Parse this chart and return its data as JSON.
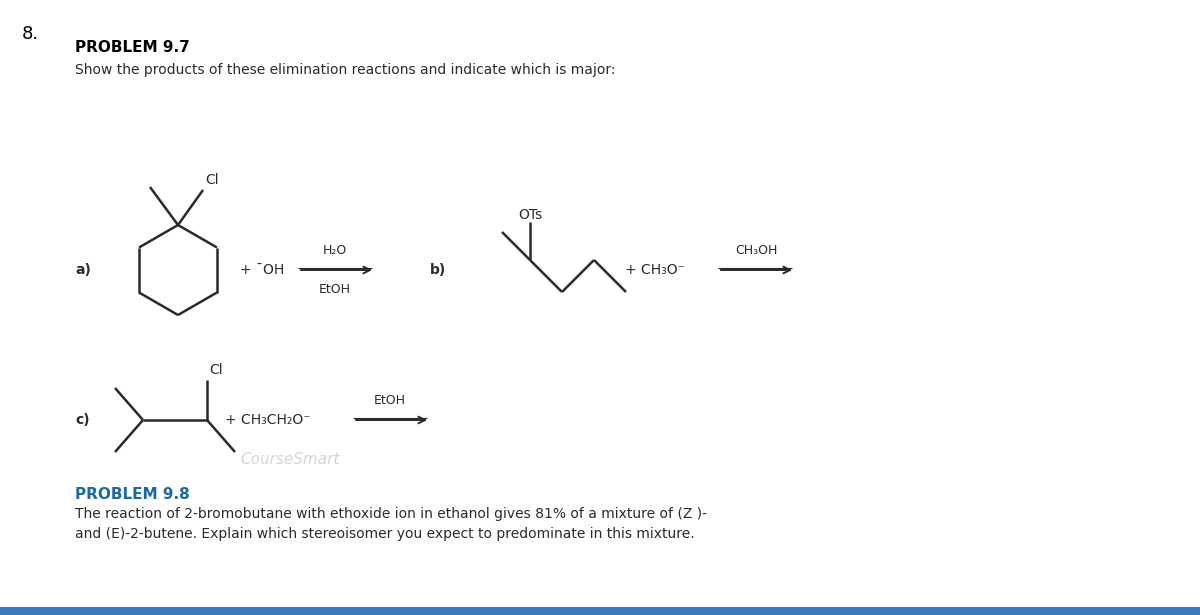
{
  "title_number": "8.",
  "problem97_title": "PROBLEM 9.7",
  "problem97_desc": "Show the products of these elimination reactions and indicate which is major:",
  "problem98_title": "PROBLEM 9.8",
  "problem98_desc": "The reaction of 2-bromobutane with ethoxide ion in ethanol gives 81% of a mixture of (Z )-\nand (E)-2-butene. Explain which stereoisomer you expect to predominate in this mixture.",
  "label_a": "a)",
  "label_b": "b)",
  "label_c": "c)",
  "reagent_a1": "+ ¯OH",
  "reagent_a2_top": "H₂O",
  "reagent_a2_bot": "EtOH",
  "reagent_b1": "+ CH₃O⁻",
  "reagent_b2": "CH₃OH",
  "reagent_c1": "+ CH₃CH₂O⁻",
  "reagent_c2": "EtOH",
  "label_Cl_a": "Cl",
  "label_OTs": "OTs",
  "label_Cl_c": "Cl",
  "bg_color": "#ffffff",
  "text_color": "#2a2a2a",
  "line_color": "#2a2a2a",
  "arrow_color": "#2a2a2a",
  "bar_color": "#3a7abf",
  "bold_color": "#000000",
  "watermark": "CourseSmart",
  "watermark_color": "#b8b8b8"
}
